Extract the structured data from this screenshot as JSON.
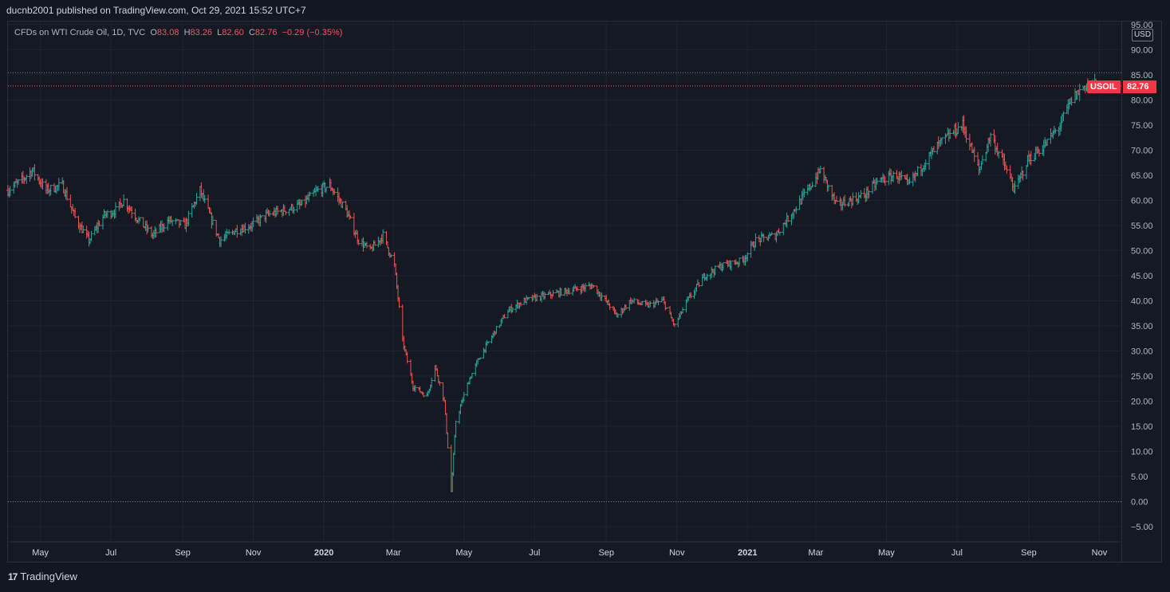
{
  "header": {
    "publish_text": "ducnb2001 published on TradingView.com, Oct 29, 2021 15:52 UTC+7"
  },
  "legend": {
    "symbol": "CFDs on WTI Crude Oil, 1D, TVC",
    "o_label": "O",
    "o_value": "83.08",
    "h_label": "H",
    "h_value": "83.26",
    "l_label": "L",
    "l_value": "82.60",
    "c_label": "C",
    "c_value": "82.76",
    "change": "−0.29 (−0.35%)"
  },
  "axis": {
    "currency": "USD"
  },
  "last_price": {
    "ticker": "USOIL",
    "value": "82.76"
  },
  "footer": {
    "brand": "TradingView",
    "logo_mark": "17"
  },
  "colors": {
    "up": "#26a69a",
    "down": "#ef5350",
    "background": "#131722",
    "grid": "#1f2330",
    "text": "#d1d4dc"
  },
  "chart_data": {
    "type": "bar",
    "style": "ohlc",
    "grid": true,
    "ylim": [
      -8,
      95
    ],
    "y_ticks": [
      "95.00",
      "90.00",
      "85.00",
      "80.00",
      "75.00",
      "70.00",
      "65.00",
      "60.00",
      "55.00",
      "50.00",
      "45.00",
      "40.00",
      "35.00",
      "30.00",
      "25.00",
      "20.00",
      "15.00",
      "10.00",
      "5.00",
      "0.00",
      "−5.00"
    ],
    "x_ticks": [
      {
        "label": "May",
        "date": "2019-05-01",
        "bold": false
      },
      {
        "label": "Jul",
        "date": "2019-07-01",
        "bold": false
      },
      {
        "label": "Sep",
        "date": "2019-09-01",
        "bold": false
      },
      {
        "label": "Nov",
        "date": "2019-11-01",
        "bold": false
      },
      {
        "label": "2020",
        "date": "2020-01-01",
        "bold": true
      },
      {
        "label": "Mar",
        "date": "2020-03-01",
        "bold": false
      },
      {
        "label": "May",
        "date": "2020-05-01",
        "bold": false
      },
      {
        "label": "Jul",
        "date": "2020-07-01",
        "bold": false
      },
      {
        "label": "Sep",
        "date": "2020-09-01",
        "bold": false
      },
      {
        "label": "Nov",
        "date": "2020-11-01",
        "bold": false
      },
      {
        "label": "2021",
        "date": "2021-01-01",
        "bold": true
      },
      {
        "label": "Mar",
        "date": "2021-03-01",
        "bold": false
      },
      {
        "label": "May",
        "date": "2021-05-01",
        "bold": false
      },
      {
        "label": "Jul",
        "date": "2021-07-01",
        "bold": false
      },
      {
        "label": "Sep",
        "date": "2021-09-01",
        "bold": false
      },
      {
        "label": "Nov",
        "date": "2021-11-01",
        "bold": false
      }
    ],
    "x_range": [
      "2019-04-03",
      "2021-11-20"
    ],
    "reference_lines": [
      {
        "value": 85.4,
        "color": "#787b86",
        "style": "dotted"
      },
      {
        "value": 82.76,
        "color": "#ef5350",
        "style": "dotted"
      },
      {
        "value": 0,
        "color": "#787b86",
        "style": "dotted"
      }
    ],
    "series_anchors": [
      {
        "x": "2019-04-03",
        "y": 62
      },
      {
        "x": "2019-04-15",
        "y": 64
      },
      {
        "x": "2019-04-24",
        "y": 66
      },
      {
        "x": "2019-05-06",
        "y": 62
      },
      {
        "x": "2019-05-20",
        "y": 63
      },
      {
        "x": "2019-06-01",
        "y": 56
      },
      {
        "x": "2019-06-12",
        "y": 52
      },
      {
        "x": "2019-06-25",
        "y": 57
      },
      {
        "x": "2019-07-05",
        "y": 58
      },
      {
        "x": "2019-07-12",
        "y": 60
      },
      {
        "x": "2019-07-25",
        "y": 56
      },
      {
        "x": "2019-08-06",
        "y": 53
      },
      {
        "x": "2019-08-20",
        "y": 56
      },
      {
        "x": "2019-09-03",
        "y": 55
      },
      {
        "x": "2019-09-16",
        "y": 62
      },
      {
        "x": "2019-09-26",
        "y": 56
      },
      {
        "x": "2019-10-03",
        "y": 52
      },
      {
        "x": "2019-10-16",
        "y": 54
      },
      {
        "x": "2019-10-30",
        "y": 55
      },
      {
        "x": "2019-11-12",
        "y": 57
      },
      {
        "x": "2019-11-27",
        "y": 58
      },
      {
        "x": "2019-12-12",
        "y": 59
      },
      {
        "x": "2019-12-27",
        "y": 62
      },
      {
        "x": "2020-01-06",
        "y": 63
      },
      {
        "x": "2020-01-20",
        "y": 58
      },
      {
        "x": "2020-01-31",
        "y": 52
      },
      {
        "x": "2020-02-10",
        "y": 50
      },
      {
        "x": "2020-02-21",
        "y": 53
      },
      {
        "x": "2020-03-02",
        "y": 47
      },
      {
        "x": "2020-03-09",
        "y": 32
      },
      {
        "x": "2020-03-18",
        "y": 23
      },
      {
        "x": "2020-03-30",
        "y": 21
      },
      {
        "x": "2020-04-06",
        "y": 27
      },
      {
        "x": "2020-04-14",
        "y": 20
      },
      {
        "x": "2020-04-20",
        "y": 2
      },
      {
        "x": "2020-04-24",
        "y": 16
      },
      {
        "x": "2020-05-05",
        "y": 24
      },
      {
        "x": "2020-05-15",
        "y": 29
      },
      {
        "x": "2020-05-28",
        "y": 34
      },
      {
        "x": "2020-06-08",
        "y": 38
      },
      {
        "x": "2020-06-22",
        "y": 40
      },
      {
        "x": "2020-07-10",
        "y": 41
      },
      {
        "x": "2020-07-30",
        "y": 42
      },
      {
        "x": "2020-08-20",
        "y": 43
      },
      {
        "x": "2020-09-04",
        "y": 39
      },
      {
        "x": "2020-09-10",
        "y": 37
      },
      {
        "x": "2020-09-22",
        "y": 40
      },
      {
        "x": "2020-10-06",
        "y": 39
      },
      {
        "x": "2020-10-20",
        "y": 40
      },
      {
        "x": "2020-10-30",
        "y": 35
      },
      {
        "x": "2020-11-10",
        "y": 40
      },
      {
        "x": "2020-11-25",
        "y": 45
      },
      {
        "x": "2020-12-10",
        "y": 47
      },
      {
        "x": "2020-12-28",
        "y": 48
      },
      {
        "x": "2021-01-08",
        "y": 52
      },
      {
        "x": "2021-01-25",
        "y": 53
      },
      {
        "x": "2021-02-10",
        "y": 58
      },
      {
        "x": "2021-02-22",
        "y": 62
      },
      {
        "x": "2021-03-05",
        "y": 66
      },
      {
        "x": "2021-03-19",
        "y": 59
      },
      {
        "x": "2021-03-31",
        "y": 60
      },
      {
        "x": "2021-04-12",
        "y": 61
      },
      {
        "x": "2021-04-25",
        "y": 64
      },
      {
        "x": "2021-05-10",
        "y": 65
      },
      {
        "x": "2021-05-20",
        "y": 63
      },
      {
        "x": "2021-06-01",
        "y": 67
      },
      {
        "x": "2021-06-15",
        "y": 71
      },
      {
        "x": "2021-06-30",
        "y": 74
      },
      {
        "x": "2021-07-06",
        "y": 75
      },
      {
        "x": "2021-07-20",
        "y": 66
      },
      {
        "x": "2021-07-30",
        "y": 73
      },
      {
        "x": "2021-08-09",
        "y": 68
      },
      {
        "x": "2021-08-20",
        "y": 62
      },
      {
        "x": "2021-08-31",
        "y": 68
      },
      {
        "x": "2021-09-15",
        "y": 71
      },
      {
        "x": "2021-09-28",
        "y": 75
      },
      {
        "x": "2021-10-08",
        "y": 80
      },
      {
        "x": "2021-10-20",
        "y": 83
      },
      {
        "x": "2021-10-29",
        "y": 82.76
      }
    ]
  }
}
